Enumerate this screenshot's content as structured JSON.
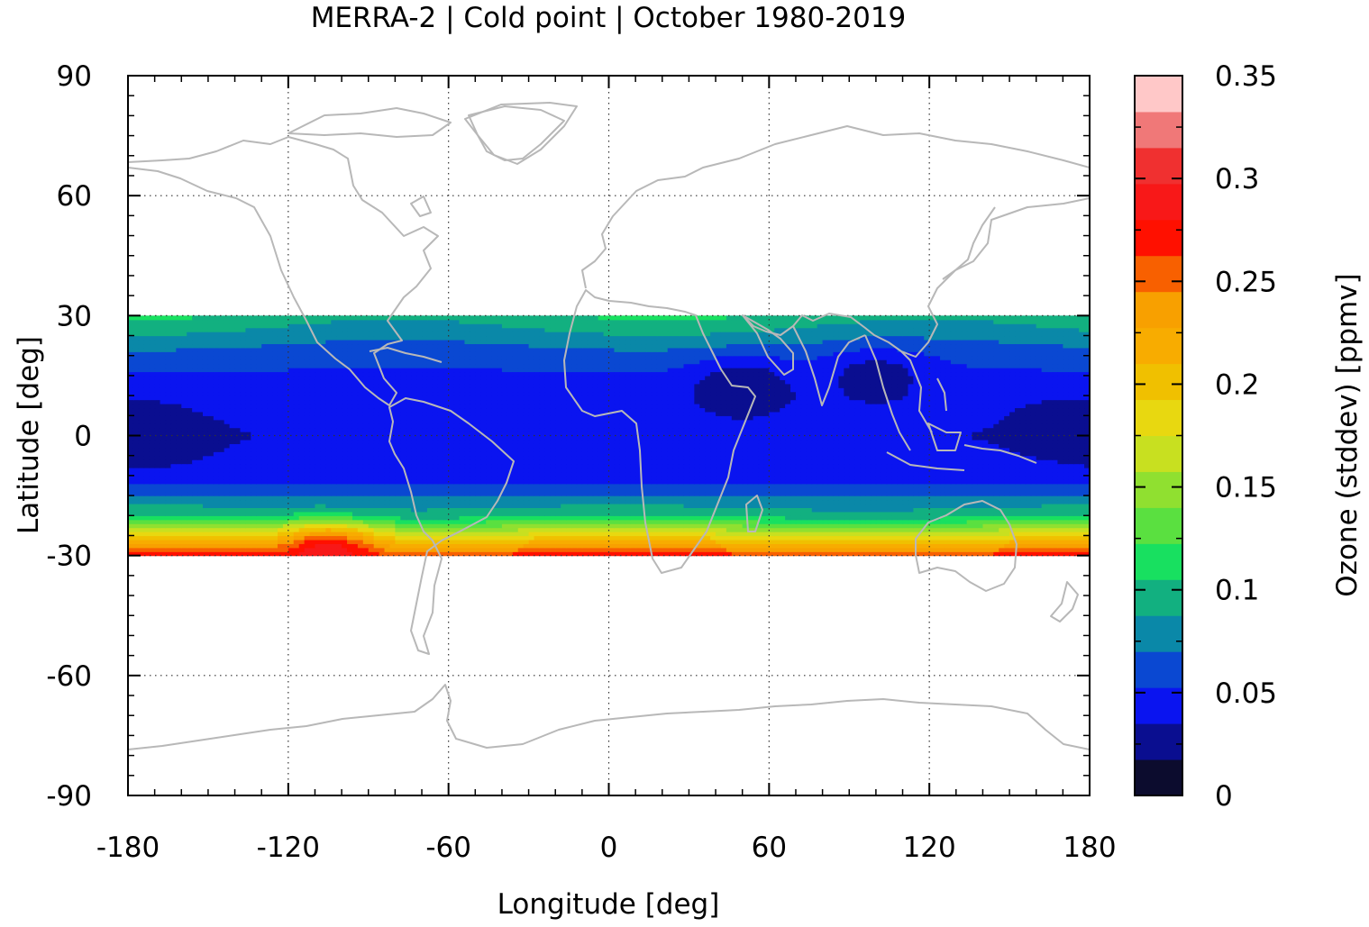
{
  "chart_data": {
    "type": "heatmap",
    "title": "MERRA-2 | Cold point | October 1980-2019",
    "xlabel": "Longitude [deg]",
    "ylabel": "Latitude [deg]",
    "colorbar_label": "Ozone (stddev) [ppmv]",
    "xlim": [
      -180,
      180
    ],
    "ylim": [
      -90,
      90
    ],
    "data_lat_range": [
      -30,
      30
    ],
    "x_ticks": [
      "-180",
      "-120",
      "-60",
      "0",
      "60",
      "120",
      "180"
    ],
    "x_tick_values": [
      -180,
      -120,
      -60,
      0,
      60,
      120,
      180
    ],
    "y_ticks": [
      "90",
      "60",
      "30",
      "0",
      "-30",
      "-60",
      "-90"
    ],
    "y_tick_values": [
      90,
      60,
      30,
      0,
      -30,
      -60,
      -90
    ],
    "colorbar_ticks": [
      "0.35",
      "0.3",
      "0.25",
      "0.2",
      "0.15",
      "0.1",
      "0.05",
      "0"
    ],
    "colorbar_tick_values": [
      0.35,
      0.3,
      0.25,
      0.2,
      0.15,
      0.1,
      0.05,
      0
    ],
    "colorbar_range": [
      0,
      0.35
    ],
    "grid": "dotted",
    "coastlines": true,
    "levels": [
      0,
      0.0175,
      0.035,
      0.0525,
      0.07,
      0.0875,
      0.105,
      0.1225,
      0.14,
      0.1575,
      0.175,
      0.1925,
      0.21,
      0.2275,
      0.245,
      0.2625,
      0.28,
      0.2975,
      0.315,
      0.3325,
      0.35
    ],
    "level_colors": [
      "#0c0c2e",
      "#0a0e90",
      "#0a14f0",
      "#0a48d2",
      "#0a88a8",
      "#12b080",
      "#18e060",
      "#5ae040",
      "#90e030",
      "#c8e020",
      "#e8d810",
      "#f0c000",
      "#f8ac00",
      "#f8a000",
      "#f86000",
      "#ff1000",
      "#f81818",
      "#f03030",
      "#f07878",
      "#ffc8c8"
    ],
    "field": {
      "description": "standard deviation of ozone at the cold point, October 1980-2019",
      "lat_band_profile": [
        {
          "lat": 30,
          "value": 0.1
        },
        {
          "lat": 20,
          "value": 0.06
        },
        {
          "lat": 10,
          "value": 0.04
        },
        {
          "lat": 0,
          "value": 0.035
        },
        {
          "lat": -10,
          "value": 0.04
        },
        {
          "lat": -20,
          "value": 0.1
        },
        {
          "lat": -25,
          "value": 0.18
        },
        {
          "lat": -30,
          "value": 0.27
        }
      ],
      "features": [
        {
          "name": "minimum central Pacific",
          "lon": -170,
          "lat": 0,
          "value": 0.02
        },
        {
          "name": "minimum Arabian Sea",
          "lon": 50,
          "lat": 13,
          "value": 0.02
        },
        {
          "name": "minimum Bay of Bengal",
          "lon": 100,
          "lat": 15,
          "value": 0.025
        },
        {
          "name": "minimum western Pacific",
          "lon": 172,
          "lat": 2,
          "value": 0.02
        },
        {
          "name": "maximum southern edge",
          "lon": -105,
          "lat": -29,
          "value": 0.29
        }
      ]
    }
  }
}
